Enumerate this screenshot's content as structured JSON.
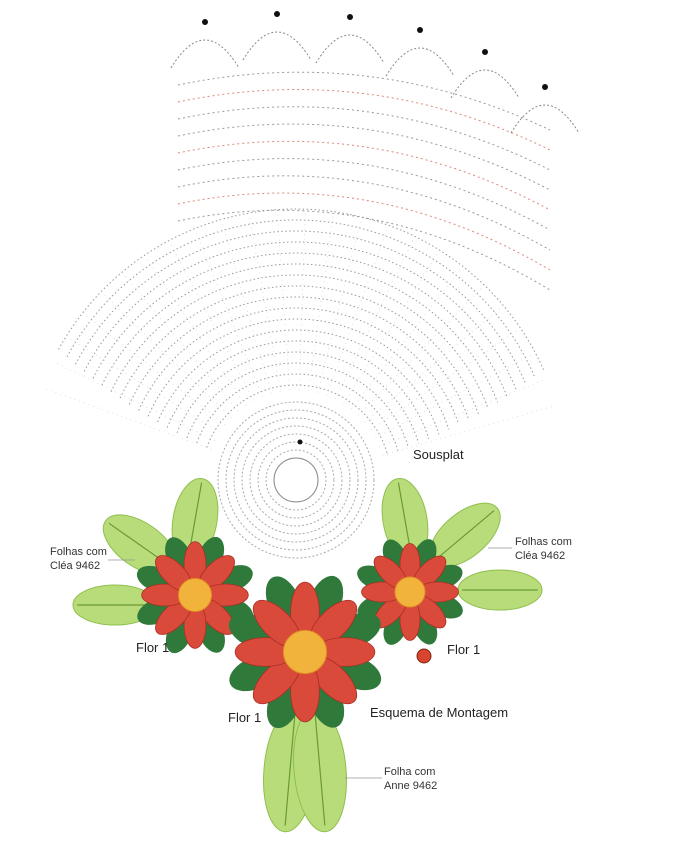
{
  "title": "Sousplat",
  "caption": "Esquema de Montagem",
  "leaf_labels": [
    {
      "lines": [
        "Folhas com",
        "Cléa 9462"
      ]
    },
    {
      "lines": [
        "Folhas com",
        "Cléa 9462"
      ]
    },
    {
      "lines": [
        "Folha com",
        "Anne 9462"
      ]
    }
  ],
  "flower_labels": [
    "Flor 1",
    "Flor 1",
    "Flor 1"
  ]
}
